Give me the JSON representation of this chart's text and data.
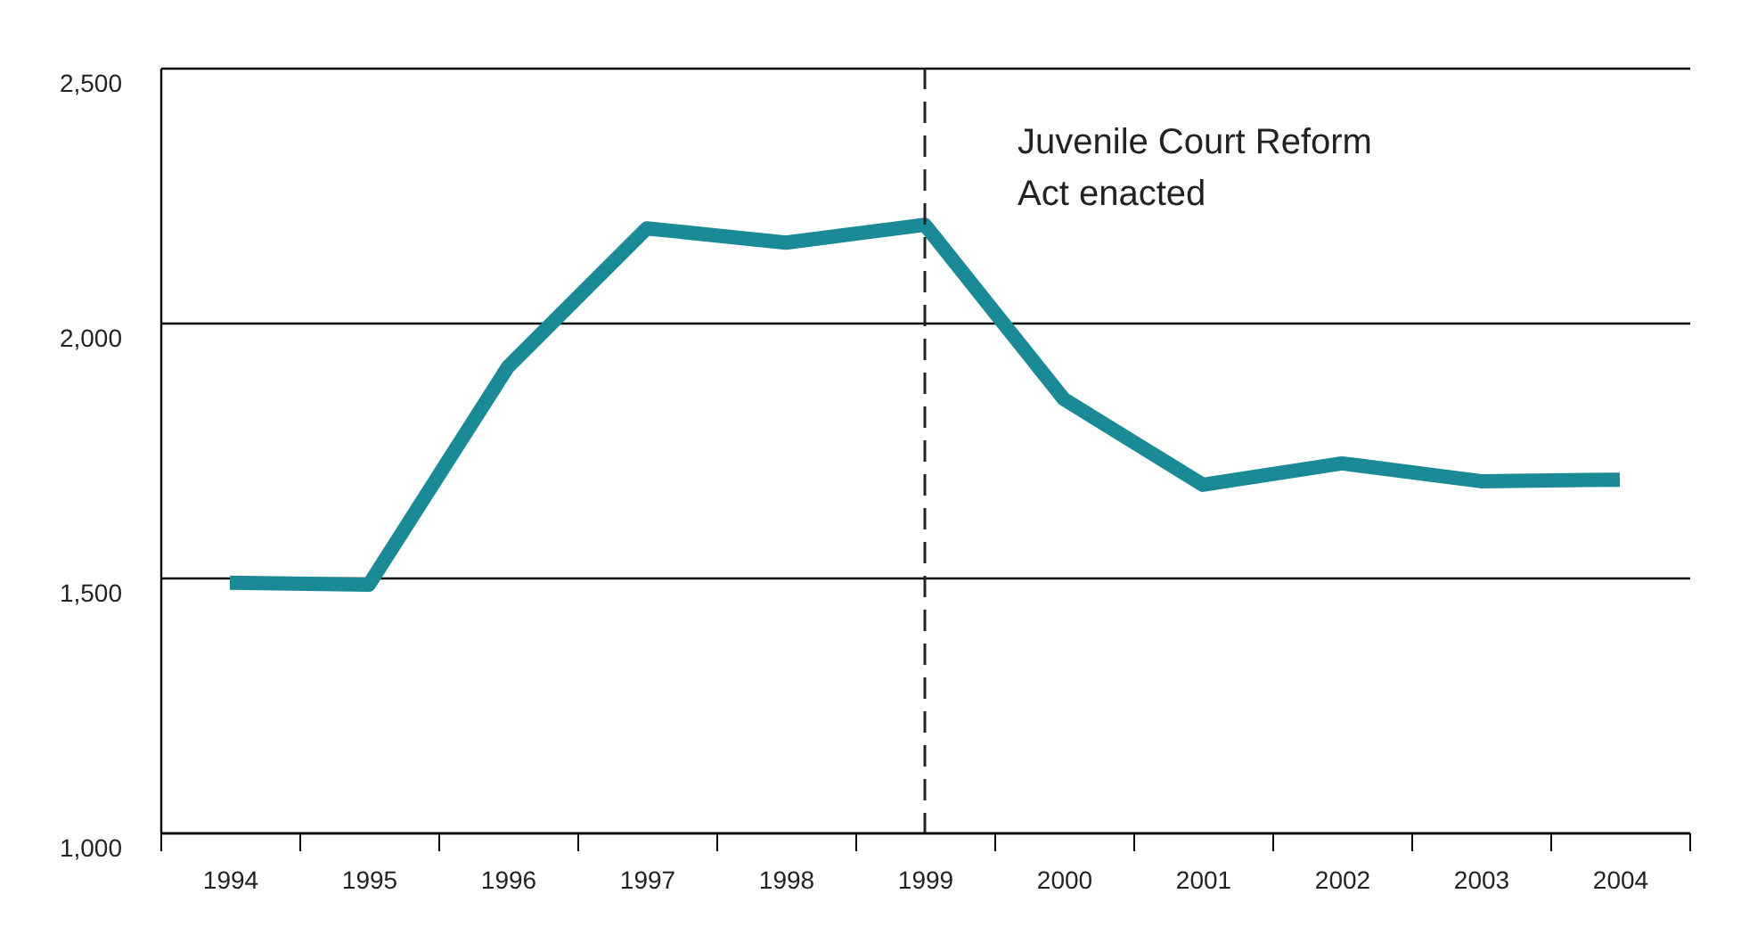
{
  "chart_data": {
    "type": "line",
    "categories": [
      "1994",
      "1995",
      "1996",
      "1997",
      "1998",
      "1999",
      "2000",
      "2001",
      "2002",
      "2003",
      "2004"
    ],
    "series": [
      {
        "color": "#1a8a96",
        "values": [
          1490,
          1486,
          1913,
          2185,
          2157,
          2192,
          1850,
          1682,
          1724,
          1689,
          1692
        ]
      }
    ],
    "ylim": [
      1000,
      2500
    ],
    "yticks": [
      {
        "value": 1000,
        "label": "1,000"
      },
      {
        "value": 1500,
        "label": "1,500"
      },
      {
        "value": 2000,
        "label": "2,000"
      },
      {
        "value": 2500,
        "label": "2,500"
      }
    ],
    "grid": "y",
    "legend": false,
    "marker": "none",
    "line_style": "solid",
    "ref_lines": [
      {
        "axis": "x",
        "value": "1999",
        "label": "Juvenile Court Reform\nAct enacted",
        "color": "#222222",
        "line_style": "dashed"
      }
    ]
  }
}
